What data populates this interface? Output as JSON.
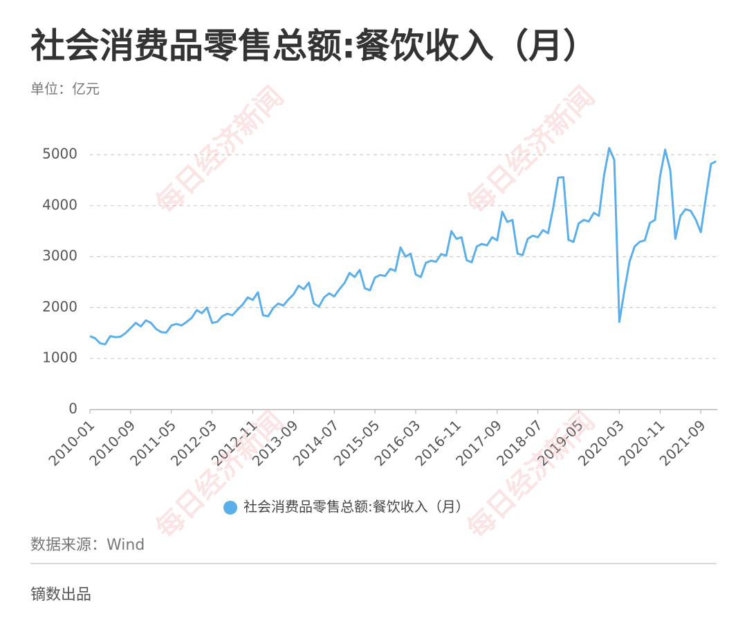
{
  "chart_data": {
    "type": "line",
    "title": "社会消费品零售总额:餐饮收入（月）",
    "subtitle": "单位：亿元",
    "source": "数据来源：Wind",
    "credit": "镝数出品",
    "watermark": "每日经济新闻",
    "categories": [
      "2010-01",
      null,
      null,
      null,
      null,
      null,
      null,
      null,
      "2010-09",
      null,
      null,
      null,
      null,
      null,
      null,
      null,
      "2011-05",
      null,
      null,
      null,
      null,
      null,
      null,
      null,
      "2012-03",
      null,
      null,
      null,
      null,
      null,
      null,
      null,
      "2012-11",
      null,
      null,
      null,
      null,
      null,
      null,
      null,
      "2013-09",
      null,
      null,
      null,
      null,
      null,
      null,
      null,
      "2014-07",
      null,
      null,
      null,
      null,
      null,
      null,
      null,
      "2015-05",
      null,
      null,
      null,
      null,
      null,
      null,
      null,
      "2016-03",
      null,
      null,
      null,
      null,
      null,
      null,
      null,
      "2016-11",
      null,
      null,
      null,
      null,
      null,
      null,
      null,
      "2017-09",
      null,
      null,
      null,
      null,
      null,
      null,
      null,
      "2018-07",
      null,
      null,
      null,
      null,
      null,
      null,
      null,
      "2019-05",
      null,
      null,
      null,
      null,
      null,
      null,
      null,
      "2020-03",
      null,
      null,
      null,
      null,
      null,
      null,
      null,
      "2020-11",
      null,
      null,
      null,
      null,
      null,
      null,
      null,
      "2021-09",
      null,
      null,
      null
    ],
    "series": [
      {
        "name": "社会消费品零售总额:餐饮收入（月）",
        "color": "#5aafea",
        "values": [
          1440,
          1400,
          1300,
          1280,
          1440,
          1420,
          1430,
          1500,
          1600,
          1700,
          1630,
          1750,
          1700,
          1580,
          1520,
          1510,
          1650,
          1680,
          1650,
          1720,
          1800,
          1950,
          1890,
          2000,
          1700,
          1720,
          1830,
          1880,
          1850,
          1960,
          2060,
          2200,
          2150,
          2300,
          1850,
          1830,
          1990,
          2080,
          2040,
          2160,
          2260,
          2430,
          2360,
          2490,
          2080,
          2020,
          2200,
          2280,
          2220,
          2360,
          2480,
          2680,
          2600,
          2740,
          2380,
          2340,
          2590,
          2640,
          2620,
          2760,
          2720,
          3180,
          3000,
          3060,
          2650,
          2600,
          2880,
          2920,
          2900,
          3050,
          3020,
          3500,
          3350,
          3380,
          2930,
          2890,
          3200,
          3250,
          3220,
          3380,
          3320,
          3880,
          3680,
          3720,
          3060,
          3030,
          3350,
          3410,
          3380,
          3520,
          3460,
          3950,
          4550,
          4560,
          3330,
          3290,
          3650,
          3720,
          3690,
          3860,
          3800,
          4600,
          5130,
          4900,
          1720,
          2340,
          2900,
          3200,
          3290,
          3320,
          3660,
          3720,
          4580,
          5100,
          4700,
          3350,
          3800,
          3930,
          3900,
          3730,
          3480,
          4160,
          4820,
          4870
        ]
      }
    ],
    "ylim": [
      0,
      5000
    ],
    "yticks": [
      0,
      1000,
      2000,
      3000,
      4000,
      5000
    ],
    "grid": true
  }
}
